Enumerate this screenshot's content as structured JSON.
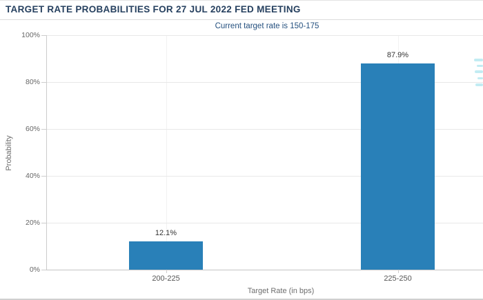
{
  "header": {
    "title": "TARGET RATE PROBABILITIES FOR 27 JUL 2022 FED MEETING",
    "subtitle": "Current target rate is 150-175"
  },
  "chart_data": {
    "type": "bar",
    "title": "TARGET RATE PROBABILITIES FOR 27 JUL 2022 FED MEETING",
    "subtitle": "Current target rate is 150-175",
    "categories": [
      "200-225",
      "225-250"
    ],
    "values": [
      12.1,
      87.9
    ],
    "data_labels": [
      "12.1%",
      "87.9%"
    ],
    "xlabel": "Target Rate (in bps)",
    "ylabel": "Probability",
    "ylim": [
      0,
      100
    ],
    "yticks": [
      0,
      20,
      40,
      60,
      80,
      100
    ],
    "ytick_labels": [
      "0%",
      "20%",
      "40%",
      "60%",
      "80%",
      "100%"
    ],
    "grid": true,
    "legend": "none"
  },
  "colors": {
    "bar": "#2980b8",
    "title": "#26405f",
    "subtitle": "#234f7e",
    "grid": "#e8e8e8",
    "axis": "#cccccc",
    "tick_label": "#666666",
    "axis_title": "#6e6e6e",
    "category_label": "#555555",
    "data_label": "#333333",
    "watermark": "#8fdcea"
  }
}
